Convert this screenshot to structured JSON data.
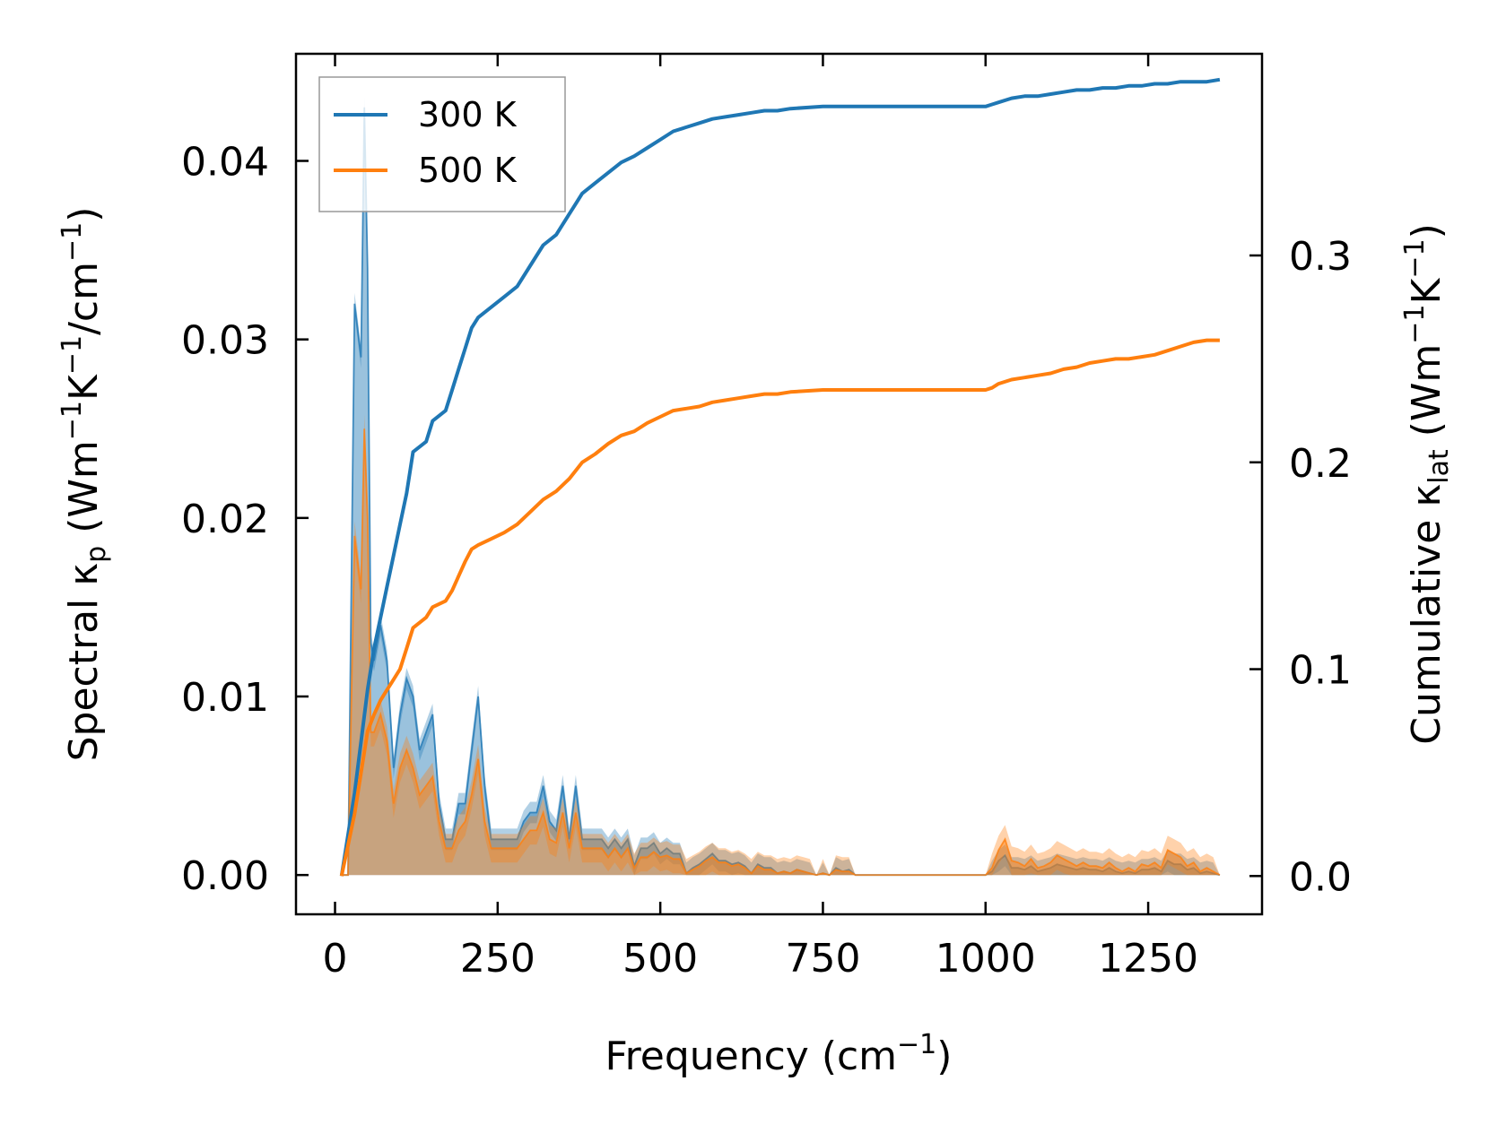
{
  "chart_data": {
    "type": "line",
    "xlabel": {
      "main": "Frequency (cm",
      "sup": "−1",
      "tail": ")"
    },
    "ylabel_left": {
      "a": "Spectral κ",
      "a_sub": "p",
      "b": " (Wm",
      "b_sup": "−1",
      "c": "K",
      "c_sup": "−1",
      "d": "/cm",
      "d_sup": "−1",
      "e": ")"
    },
    "ylabel_right": {
      "a": "Cumulative κ",
      "a_sub": "lat",
      "b": " (Wm",
      "b_sup": "−1",
      "c": "K",
      "c_sup": "−1",
      "d": ")"
    },
    "x_ticks": [
      0,
      250,
      500,
      750,
      1000,
      1250
    ],
    "x_tick_labels": [
      "0",
      "250",
      "500",
      "750",
      "1000",
      "1250"
    ],
    "xlim": [
      -60,
      1425
    ],
    "y_left_ticks": [
      0,
      0.01,
      0.02,
      0.03,
      0.04
    ],
    "y_left_tick_labels": [
      "0.00",
      "0.01",
      "0.02",
      "0.03",
      "0.04"
    ],
    "ylim_left": [
      -0.0022,
      0.046
    ],
    "y_right_ticks": [
      0,
      0.1,
      0.2,
      0.3
    ],
    "y_right_tick_labels": [
      "0.0",
      "0.1",
      "0.2",
      "0.3"
    ],
    "ylim_right": [
      -0.0185,
      0.3975
    ],
    "legend": {
      "placement": "upper-left"
    },
    "grid": false,
    "series": [
      {
        "name": "300 K",
        "color": "#1f77b4",
        "spectral_x": [
          10,
          20,
          30,
          40,
          45,
          50,
          55,
          60,
          70,
          80,
          90,
          100,
          110,
          120,
          130,
          140,
          150,
          160,
          170,
          180,
          190,
          200,
          210,
          220,
          230,
          240,
          250,
          260,
          270,
          280,
          290,
          300,
          310,
          320,
          330,
          340,
          350,
          360,
          370,
          380,
          390,
          400,
          410,
          420,
          430,
          440,
          450,
          460,
          470,
          480,
          490,
          500,
          510,
          520,
          530,
          540,
          550,
          560,
          570,
          580,
          590,
          600,
          610,
          620,
          630,
          640,
          650,
          660,
          670,
          680,
          690,
          700,
          710,
          720,
          730,
          740,
          750,
          760,
          770,
          780,
          790,
          800,
          850,
          900,
          950,
          1000,
          1010,
          1020,
          1030,
          1040,
          1050,
          1060,
          1070,
          1080,
          1090,
          1100,
          1110,
          1120,
          1130,
          1140,
          1150,
          1160,
          1170,
          1180,
          1190,
          1200,
          1210,
          1220,
          1230,
          1240,
          1250,
          1260,
          1270,
          1280,
          1290,
          1300,
          1310,
          1320,
          1330,
          1340,
          1350,
          1360
        ],
        "spectral_y": [
          0,
          0,
          0.032,
          0.029,
          0.043,
          0.034,
          0.013,
          0.012,
          0.014,
          0.012,
          0.006,
          0.009,
          0.011,
          0.01,
          0.007,
          0.008,
          0.009,
          0.004,
          0.002,
          0.002,
          0.004,
          0.004,
          0.007,
          0.01,
          0.005,
          0.002,
          0.002,
          0.002,
          0.002,
          0.002,
          0.003,
          0.0035,
          0.0035,
          0.005,
          0.003,
          0.0025,
          0.005,
          0.002,
          0.005,
          0.002,
          0.002,
          0.002,
          0.002,
          0.0015,
          0.002,
          0.0015,
          0.002,
          0.0005,
          0.0015,
          0.0015,
          0.0018,
          0.0012,
          0.0015,
          0.0012,
          0.0012,
          0.0001,
          0.0004,
          0.0006,
          0.0009,
          0.0012,
          0.0008,
          0.0008,
          0.0006,
          0.0007,
          0.0005,
          0.0001,
          0.0006,
          0.0004,
          0.0004,
          0.0001,
          0.0002,
          0.0001,
          0.0003,
          0.0002,
          0.0001,
          0,
          0.0001,
          0,
          0.0004,
          0.0002,
          0.0003,
          0,
          0,
          0,
          0,
          0,
          0.0002,
          0.0008,
          0.0011,
          0.0004,
          0.0004,
          0.0003,
          0.0005,
          0.0002,
          0.0003,
          0.0004,
          0.0006,
          0.0005,
          0.0004,
          0.0003,
          0.0004,
          0.0003,
          0.0003,
          0.0002,
          0.0004,
          0.0002,
          0.0001,
          0.0002,
          0.0001,
          0.0003,
          0.0003,
          0.0004,
          0.0002,
          0.0008,
          0.0006,
          0.0006,
          0.0003,
          0.0004,
          0.0001,
          0.0002,
          0.0001,
          0
        ],
        "spectral_band": 0.0006,
        "cumulative_x": [
          10,
          30,
          50,
          60,
          70,
          80,
          90,
          100,
          110,
          120,
          140,
          150,
          170,
          180,
          190,
          200,
          210,
          220,
          240,
          260,
          280,
          300,
          320,
          340,
          360,
          370,
          380,
          400,
          420,
          440,
          460,
          480,
          500,
          520,
          540,
          560,
          580,
          600,
          620,
          640,
          660,
          680,
          700,
          750,
          800,
          850,
          900,
          950,
          1000,
          1010,
          1020,
          1040,
          1060,
          1080,
          1100,
          1120,
          1140,
          1160,
          1180,
          1200,
          1220,
          1240,
          1260,
          1280,
          1300,
          1320,
          1340,
          1360
        ],
        "cumulative_y": [
          0,
          0.04,
          0.09,
          0.11,
          0.125,
          0.14,
          0.155,
          0.17,
          0.185,
          0.205,
          0.21,
          0.22,
          0.225,
          0.235,
          0.245,
          0.255,
          0.265,
          0.27,
          0.275,
          0.28,
          0.285,
          0.295,
          0.305,
          0.31,
          0.32,
          0.325,
          0.33,
          0.335,
          0.34,
          0.345,
          0.348,
          0.352,
          0.356,
          0.36,
          0.362,
          0.364,
          0.366,
          0.367,
          0.368,
          0.369,
          0.37,
          0.37,
          0.371,
          0.372,
          0.372,
          0.372,
          0.372,
          0.372,
          0.372,
          0.373,
          0.374,
          0.376,
          0.377,
          0.377,
          0.378,
          0.379,
          0.38,
          0.38,
          0.381,
          0.381,
          0.382,
          0.382,
          0.383,
          0.383,
          0.384,
          0.384,
          0.384,
          0.385
        ]
      },
      {
        "name": "500 K",
        "color": "#ff7f0e",
        "spectral_x": [
          10,
          20,
          30,
          40,
          45,
          50,
          55,
          60,
          70,
          80,
          90,
          100,
          110,
          120,
          130,
          140,
          150,
          160,
          170,
          180,
          190,
          200,
          210,
          220,
          230,
          240,
          250,
          260,
          270,
          280,
          290,
          300,
          310,
          320,
          330,
          340,
          350,
          360,
          370,
          380,
          390,
          400,
          410,
          420,
          430,
          440,
          450,
          460,
          470,
          480,
          490,
          500,
          510,
          520,
          530,
          540,
          550,
          560,
          570,
          580,
          590,
          600,
          610,
          620,
          630,
          640,
          650,
          660,
          670,
          680,
          690,
          700,
          710,
          720,
          730,
          740,
          750,
          760,
          770,
          780,
          790,
          800,
          850,
          900,
          950,
          1000,
          1010,
          1020,
          1030,
          1040,
          1050,
          1060,
          1070,
          1080,
          1090,
          1100,
          1110,
          1120,
          1130,
          1140,
          1150,
          1160,
          1170,
          1180,
          1190,
          1200,
          1210,
          1220,
          1230,
          1240,
          1250,
          1260,
          1270,
          1280,
          1290,
          1300,
          1310,
          1320,
          1330,
          1340,
          1350,
          1360
        ],
        "spectral_y": [
          0,
          0,
          0.019,
          0.016,
          0.025,
          0.02,
          0.008,
          0.008,
          0.009,
          0.0075,
          0.004,
          0.006,
          0.007,
          0.006,
          0.0045,
          0.005,
          0.0055,
          0.003,
          0.0015,
          0.0015,
          0.0025,
          0.003,
          0.0045,
          0.0065,
          0.003,
          0.0015,
          0.0015,
          0.0015,
          0.0015,
          0.0015,
          0.002,
          0.0025,
          0.0025,
          0.0035,
          0.002,
          0.0018,
          0.0035,
          0.0015,
          0.0035,
          0.0015,
          0.0015,
          0.0015,
          0.0015,
          0.001,
          0.0015,
          0.001,
          0.0015,
          0.0004,
          0.001,
          0.001,
          0.0013,
          0.001,
          0.0011,
          0.0009,
          0.0009,
          0.0001,
          0.0003,
          0.0005,
          0.0008,
          0.001,
          0.0007,
          0.0007,
          0.0005,
          0.0006,
          0.0004,
          0.0001,
          0.0005,
          0.0003,
          0.0003,
          0.0001,
          0.0002,
          0.0001,
          0.0003,
          0.0002,
          0.0001,
          0,
          0.0001,
          0,
          0.0003,
          0.0002,
          0.0002,
          0,
          0,
          0,
          0,
          0,
          0.0004,
          0.0014,
          0.002,
          0.0008,
          0.0007,
          0.0005,
          0.0009,
          0.0004,
          0.0005,
          0.0007,
          0.0011,
          0.0009,
          0.0007,
          0.0005,
          0.0007,
          0.0005,
          0.0005,
          0.0004,
          0.0007,
          0.0004,
          0.0002,
          0.0004,
          0.0002,
          0.0006,
          0.0005,
          0.0007,
          0.0004,
          0.0014,
          0.0012,
          0.001,
          0.0005,
          0.0007,
          0.0002,
          0.0004,
          0.0002,
          0
        ],
        "spectral_band": 0.0008,
        "cumulative_x": [
          10,
          30,
          50,
          60,
          70,
          80,
          90,
          100,
          110,
          120,
          140,
          150,
          170,
          180,
          190,
          200,
          210,
          220,
          240,
          260,
          280,
          300,
          320,
          340,
          360,
          370,
          380,
          400,
          420,
          440,
          460,
          480,
          500,
          520,
          540,
          560,
          580,
          600,
          620,
          640,
          660,
          680,
          700,
          750,
          800,
          850,
          900,
          950,
          1000,
          1010,
          1020,
          1040,
          1060,
          1080,
          1100,
          1120,
          1140,
          1160,
          1180,
          1200,
          1220,
          1240,
          1260,
          1280,
          1300,
          1320,
          1340,
          1360
        ],
        "cumulative_y": [
          0,
          0.03,
          0.07,
          0.078,
          0.085,
          0.09,
          0.095,
          0.1,
          0.11,
          0.12,
          0.125,
          0.13,
          0.133,
          0.138,
          0.145,
          0.152,
          0.158,
          0.16,
          0.163,
          0.166,
          0.17,
          0.176,
          0.182,
          0.186,
          0.192,
          0.196,
          0.2,
          0.204,
          0.209,
          0.213,
          0.215,
          0.219,
          0.222,
          0.225,
          0.226,
          0.227,
          0.229,
          0.23,
          0.231,
          0.232,
          0.233,
          0.233,
          0.234,
          0.235,
          0.235,
          0.235,
          0.235,
          0.235,
          0.235,
          0.236,
          0.238,
          0.24,
          0.241,
          0.242,
          0.243,
          0.245,
          0.246,
          0.248,
          0.249,
          0.25,
          0.25,
          0.251,
          0.252,
          0.254,
          0.256,
          0.258,
          0.259,
          0.259
        ]
      }
    ]
  }
}
